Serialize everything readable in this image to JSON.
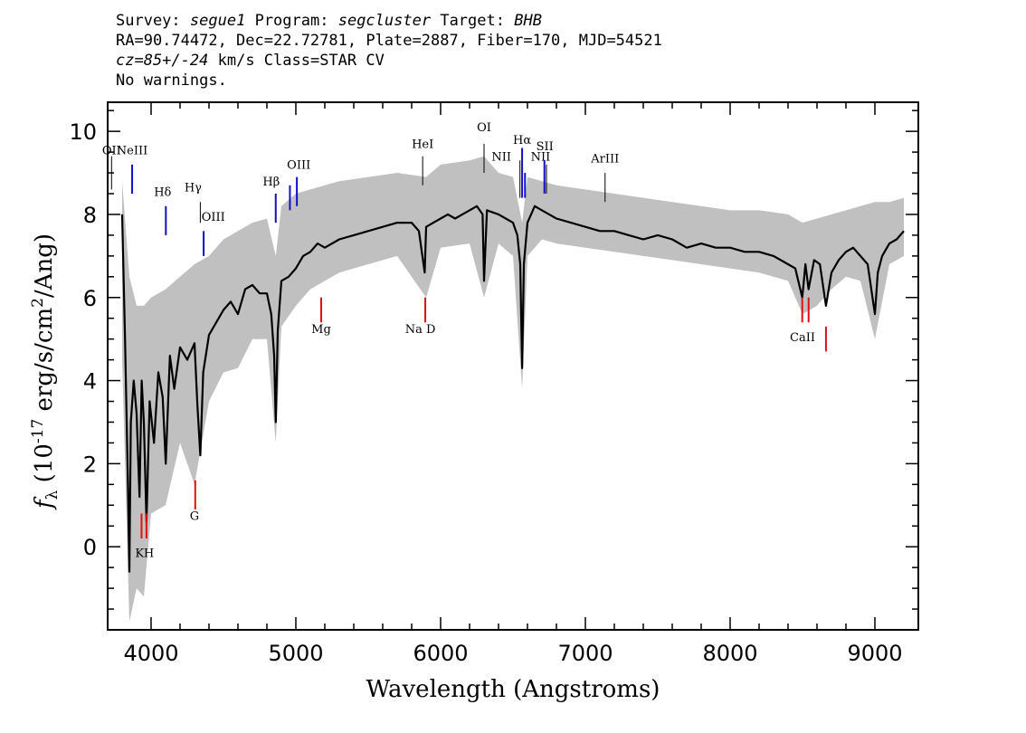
{
  "header": {
    "survey_label": "Survey:",
    "survey": "segue1",
    "program_label": "Program:",
    "program": "segcluster",
    "target_label": "Target:",
    "target": "BHB",
    "line2": "RA=90.74472, Dec=22.72781, Plate=2887, Fiber=170, MJD=54521",
    "cz": "cz=85+/-24",
    "cz_units": "km/s Class=STAR CV",
    "line4": "No warnings."
  },
  "chart_data": {
    "type": "line",
    "xlabel": "Wavelength (Angstroms)",
    "ylabel_main": "f",
    "ylabel_sub": "λ",
    "ylabel_mid": " (10",
    "ylabel_exp": "-17",
    "ylabel_units": " erg/s/cm",
    "ylabel_exp2": "2",
    "ylabel_end": "/Ang)",
    "xlim": [
      3700,
      9300
    ],
    "ylim": [
      -2,
      10.7
    ],
    "xticks": [
      4000,
      5000,
      6000,
      7000,
      8000,
      9000
    ],
    "yticks": [
      0,
      2,
      4,
      6,
      8,
      10
    ],
    "colors": {
      "flux": "#000000",
      "error_band": "#c0c0c0",
      "emission": "#1010c8",
      "absorption": "#e01010",
      "other": "#000000"
    },
    "series": [
      {
        "role": "flux",
        "x": [
          3800,
          3820,
          3840,
          3850,
          3860,
          3880,
          3900,
          3920,
          3935,
          3950,
          3968,
          3990,
          4020,
          4050,
          4080,
          4101,
          4130,
          4160,
          4200,
          4250,
          4300,
          4320,
          4340,
          4360,
          4400,
          4450,
          4500,
          4550,
          4600,
          4650,
          4700,
          4750,
          4800,
          4830,
          4850,
          4861,
          4875,
          4900,
          4950,
          5000,
          5050,
          5100,
          5150,
          5200,
          5300,
          5400,
          5500,
          5600,
          5700,
          5800,
          5850,
          5890,
          5900,
          5950,
          6000,
          6050,
          6100,
          6200,
          6250,
          6290,
          6300,
          6320,
          6400,
          6450,
          6500,
          6530,
          6550,
          6563,
          6575,
          6600,
          6650,
          6700,
          6750,
          6800,
          6900,
          7000,
          7100,
          7200,
          7300,
          7400,
          7500,
          7600,
          7700,
          7800,
          7900,
          8000,
          8100,
          8200,
          8300,
          8400,
          8450,
          8498,
          8520,
          8542,
          8580,
          8620,
          8662,
          8700,
          8750,
          8800,
          8850,
          8900,
          8950,
          9000,
          9020,
          9050,
          9100,
          9150,
          9200
        ],
        "y": [
          8.0,
          5.0,
          1.5,
          -0.6,
          3.0,
          4.0,
          3.2,
          1.2,
          4.0,
          3.0,
          0.6,
          3.5,
          2.5,
          4.2,
          3.6,
          2.0,
          4.6,
          3.8,
          4.8,
          4.5,
          4.9,
          3.4,
          2.2,
          4.2,
          5.1,
          5.4,
          5.7,
          5.9,
          5.6,
          6.2,
          6.3,
          6.1,
          6.1,
          5.6,
          4.6,
          3.0,
          5.2,
          6.4,
          6.5,
          6.7,
          7.0,
          7.1,
          7.3,
          7.2,
          7.4,
          7.5,
          7.6,
          7.7,
          7.8,
          7.8,
          7.6,
          6.6,
          7.7,
          7.8,
          7.9,
          8.0,
          7.9,
          8.1,
          8.2,
          8.0,
          6.4,
          8.1,
          8.0,
          7.9,
          7.8,
          7.5,
          6.8,
          4.3,
          6.8,
          7.8,
          8.2,
          8.1,
          8.0,
          7.9,
          7.8,
          7.7,
          7.6,
          7.6,
          7.5,
          7.4,
          7.5,
          7.4,
          7.2,
          7.3,
          7.2,
          7.2,
          7.1,
          7.1,
          7.0,
          6.8,
          6.7,
          6.0,
          6.8,
          6.2,
          6.9,
          6.8,
          5.8,
          6.6,
          6.9,
          7.1,
          7.2,
          7.0,
          6.8,
          5.6,
          6.6,
          7.0,
          7.3,
          7.4,
          7.6
        ]
      }
    ],
    "error_band": {
      "x": [
        3800,
        3850,
        3900,
        3950,
        4000,
        4100,
        4200,
        4300,
        4400,
        4500,
        4600,
        4700,
        4800,
        4861,
        4900,
        5000,
        5100,
        5200,
        5300,
        5500,
        5700,
        5900,
        6000,
        6200,
        6300,
        6400,
        6500,
        6563,
        6600,
        6700,
        6800,
        7000,
        7200,
        7400,
        7600,
        7800,
        8000,
        8200,
        8400,
        8500,
        8600,
        8700,
        8800,
        8900,
        9000,
        9100,
        9200
      ],
      "low": [
        4.5,
        -1.8,
        -1.0,
        -1.2,
        0.8,
        1.0,
        2.5,
        1.5,
        3.5,
        4.2,
        4.3,
        5.0,
        5.0,
        2.5,
        5.3,
        5.8,
        6.2,
        6.4,
        6.6,
        6.8,
        7.0,
        6.0,
        7.2,
        7.3,
        6.0,
        7.3,
        7.0,
        3.8,
        7.0,
        7.4,
        7.3,
        7.2,
        7.1,
        7.0,
        6.9,
        6.8,
        6.7,
        6.6,
        6.4,
        5.6,
        5.8,
        6.2,
        6.5,
        6.4,
        5.0,
        6.8,
        7.0
      ],
      "high": [
        8.8,
        6.5,
        5.8,
        5.8,
        6.0,
        6.2,
        6.5,
        6.8,
        7.0,
        7.4,
        7.6,
        7.8,
        7.9,
        7.0,
        8.2,
        8.5,
        8.6,
        8.7,
        8.8,
        8.9,
        9.0,
        8.9,
        9.2,
        9.3,
        9.4,
        9.0,
        8.9,
        7.8,
        8.9,
        8.8,
        8.7,
        8.6,
        8.5,
        8.4,
        8.3,
        8.2,
        8.1,
        8.1,
        8.0,
        7.8,
        7.9,
        8.0,
        8.1,
        8.2,
        8.3,
        8.3,
        8.4
      ]
    },
    "lines": [
      {
        "label": "OII",
        "x": 3727,
        "y0": 8.6,
        "y1": 9.4,
        "kind": "other",
        "lx": 3727,
        "ly": 9.45
      },
      {
        "label": "NeIII",
        "x": 3869,
        "y0": 8.5,
        "y1": 9.2,
        "kind": "emission",
        "lx": 3869,
        "ly": 9.45
      },
      {
        "label": "Hδ",
        "x": 4102,
        "y0": 7.5,
        "y1": 8.2,
        "kind": "emission",
        "lx": 4080,
        "ly": 8.45
      },
      {
        "label": "Hγ",
        "x": 4340,
        "y0": 7.8,
        "y1": 8.3,
        "kind": "other",
        "lx": 4290,
        "ly": 8.55
      },
      {
        "label": "OIII",
        "x": 4363,
        "y0": 7.0,
        "y1": 7.6,
        "kind": "emission",
        "lx": 4430,
        "ly": 7.85
      },
      {
        "label": "Hβ",
        "x": 4861,
        "y0": 7.8,
        "y1": 8.5,
        "kind": "emission",
        "lx": 4830,
        "ly": 8.7
      },
      {
        "label": "OIII",
        "x": 4959,
        "y0": 8.1,
        "y1": 8.7,
        "kind": "emission",
        "lx": 5020,
        "ly": 9.1
      },
      {
        "label": "OIII",
        "x": 5007,
        "y0": 8.2,
        "y1": 8.9,
        "kind": "emission",
        "lx": null,
        "ly": null
      },
      {
        "label": "HeI",
        "x": 5876,
        "y0": 8.7,
        "y1": 9.4,
        "kind": "other",
        "lx": 5876,
        "ly": 9.6
      },
      {
        "label": "OI",
        "x": 6300,
        "y0": 9.0,
        "y1": 9.7,
        "kind": "other",
        "lx": 6300,
        "ly": 10.0
      },
      {
        "label": "NII",
        "x": 6548,
        "y0": 8.4,
        "y1": 9.3,
        "kind": "other",
        "lx": 6420,
        "ly": 9.3
      },
      {
        "label": "Hα",
        "x": 6563,
        "y0": 8.4,
        "y1": 9.6,
        "kind": "emission",
        "lx": 6563,
        "ly": 9.7
      },
      {
        "label": "NII",
        "x": 6583,
        "y0": 8.4,
        "y1": 9.0,
        "kind": "emission",
        "lx": 6690,
        "ly": 9.3
      },
      {
        "label": "SII",
        "x": 6717,
        "y0": 8.5,
        "y1": 9.3,
        "kind": "emission",
        "lx": 6720,
        "ly": 9.55
      },
      {
        "label": "SII",
        "x": 6731,
        "y0": 8.5,
        "y1": 9.2,
        "kind": "other",
        "lx": null,
        "ly": null
      },
      {
        "label": "ArIII",
        "x": 7136,
        "y0": 8.3,
        "y1": 9.0,
        "kind": "other",
        "lx": 7136,
        "ly": 9.25
      },
      {
        "label": "K",
        "x": 3934,
        "y0": 0.2,
        "y1": 0.8,
        "kind": "absorption",
        "lx": 3920,
        "ly": -0.25
      },
      {
        "label": "H",
        "x": 3968,
        "y0": 0.2,
        "y1": 0.8,
        "kind": "absorption",
        "lx": 3985,
        "ly": -0.25
      },
      {
        "label": "G",
        "x": 4305,
        "y0": 0.9,
        "y1": 1.6,
        "kind": "absorption",
        "lx": 4300,
        "ly": 0.65
      },
      {
        "label": "Mg",
        "x": 5175,
        "y0": 5.4,
        "y1": 6.0,
        "kind": "absorption",
        "lx": 5175,
        "ly": 5.15
      },
      {
        "label": "Na D",
        "x": 5894,
        "y0": 5.4,
        "y1": 6.0,
        "kind": "absorption",
        "lx": 5860,
        "ly": 5.15
      },
      {
        "label": "CaII",
        "x": 8498,
        "y0": 5.4,
        "y1": 6.0,
        "kind": "absorption",
        "lx": 8500,
        "ly": 4.95
      },
      {
        "label": "CaII",
        "x": 8542,
        "y0": 5.4,
        "y1": 6.0,
        "kind": "absorption",
        "lx": null,
        "ly": null
      },
      {
        "label": "CaII",
        "x": 8662,
        "y0": 4.7,
        "y1": 5.3,
        "kind": "absorption",
        "lx": null,
        "ly": null
      }
    ]
  }
}
